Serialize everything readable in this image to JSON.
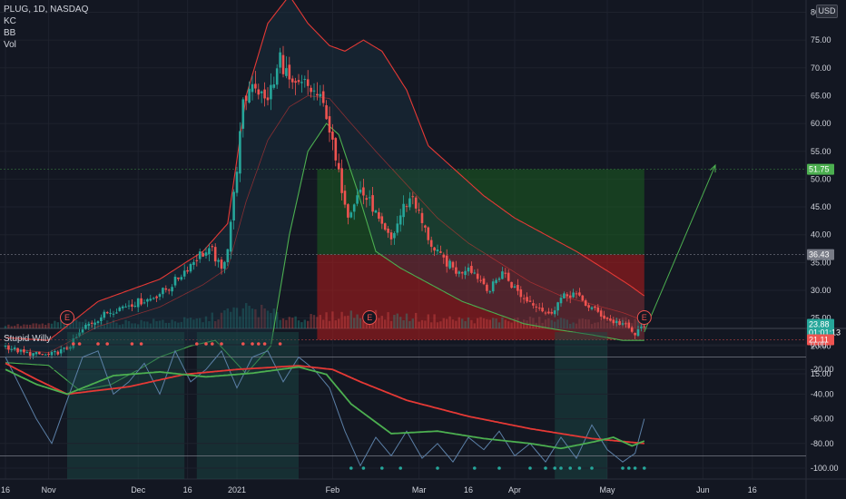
{
  "header": {
    "symbol_line": "PLUG, 1D, NASDAQ",
    "indicators": [
      "KC",
      "BB",
      "Vol"
    ]
  },
  "pane2_title": "Stupid Willy",
  "currency": "USD",
  "colors": {
    "background": "#131722",
    "up": "#26a69a",
    "down": "#ef5350",
    "keltner": "#e53935",
    "bollinger_lower": "#4caf50",
    "willy_fast": "#4caf50",
    "willy_slow": "#e53935",
    "willy_raw": "#5b7fa6",
    "profit_zone": "#1b5e20",
    "loss_zone": "#b71c1c",
    "projection": "#4caf50"
  },
  "chart_data": [
    {
      "type": "candlestick",
      "title": "PLUG, 1D, NASDAQ",
      "y_axis": {
        "range": [
          12,
          82
        ],
        "ticks": [
          "80.00",
          "75.00",
          "70.00",
          "65.00",
          "60.00",
          "55.00",
          "50.00",
          "45.00",
          "40.00",
          "35.00",
          "30.00",
          "25.00",
          "20.00",
          "15.00"
        ],
        "tick_values": [
          80,
          75,
          70,
          65,
          60,
          55,
          50,
          45,
          40,
          35,
          30,
          25,
          20,
          15
        ]
      },
      "x_axis": {
        "ticks": [
          "16",
          "Nov",
          "Dec",
          "16",
          "2021",
          "Feb",
          "Mar",
          "16",
          "Apr",
          "May",
          "Jun",
          "16"
        ],
        "tick_days": [
          0,
          14,
          43,
          59,
          75,
          106,
          134,
          150,
          165,
          195,
          226,
          242
        ]
      },
      "price_labels": [
        {
          "text": "51.75",
          "value": 51.75,
          "kind": "target"
        },
        {
          "text": "36.43",
          "value": 36.43,
          "kind": "entry"
        },
        {
          "text": "23.88",
          "value": 23.88,
          "kind": "last"
        },
        {
          "text": "01:01:13",
          "value": 22.4,
          "kind": "countdown"
        },
        {
          "text": "21.11",
          "value": 21.11,
          "kind": "stop"
        }
      ],
      "earnings_markers": [
        {
          "label": "E",
          "day": 20
        },
        {
          "label": "E",
          "day": 118
        },
        {
          "label": "E",
          "day": 207
        }
      ],
      "position_box": {
        "start_day": 101,
        "end_day": 207,
        "entry": 36.43,
        "target": 51.75,
        "stop": 21.11
      },
      "projection_arrow": {
        "from_day": 207,
        "from_value": 22.5,
        "to_day": 230,
        "to_value": 52.5
      },
      "price_keypoints": [
        [
          0,
          20.0
        ],
        [
          6,
          18.7
        ],
        [
          14,
          18.3
        ],
        [
          20,
          19.5
        ],
        [
          26,
          23.5
        ],
        [
          33,
          26.0
        ],
        [
          40,
          27.5
        ],
        [
          47,
          28.5
        ],
        [
          53,
          30.5
        ],
        [
          58,
          33.5
        ],
        [
          63,
          36.5
        ],
        [
          67,
          37.0
        ],
        [
          70,
          33.5
        ],
        [
          72,
          38.0
        ],
        [
          74,
          47.0
        ],
        [
          77,
          63.0
        ],
        [
          80,
          68.0
        ],
        [
          84,
          64.0
        ],
        [
          87,
          67.0
        ],
        [
          89,
          72.0
        ],
        [
          93,
          66.0
        ],
        [
          97,
          67.0
        ],
        [
          101,
          65.0
        ],
        [
          104,
          62.0
        ],
        [
          107,
          53.0
        ],
        [
          111,
          44.0
        ],
        [
          115,
          48.0
        ],
        [
          119,
          45.0
        ],
        [
          122,
          41.0
        ],
        [
          125,
          39.0
        ],
        [
          129,
          45.0
        ],
        [
          132,
          47.0
        ],
        [
          135,
          42.0
        ],
        [
          139,
          37.0
        ],
        [
          143,
          35.0
        ],
        [
          147,
          33.0
        ],
        [
          150,
          34.5
        ],
        [
          153,
          32.5
        ],
        [
          157,
          30.0
        ],
        [
          161,
          33.5
        ],
        [
          164,
          31.0
        ],
        [
          168,
          28.5
        ],
        [
          172,
          27.5
        ],
        [
          176,
          25.5
        ],
        [
          180,
          28.5
        ],
        [
          184,
          29.5
        ],
        [
          188,
          27.5
        ],
        [
          192,
          26.0
        ],
        [
          196,
          24.5
        ],
        [
          200,
          24.0
        ],
        [
          204,
          22.0
        ],
        [
          207,
          23.88
        ]
      ],
      "keltner_upper_keypoints": [
        [
          0,
          21.5
        ],
        [
          14,
          21.0
        ],
        [
          30,
          28.0
        ],
        [
          50,
          32.0
        ],
        [
          64,
          37.0
        ],
        [
          72,
          42.0
        ],
        [
          78,
          65.0
        ],
        [
          85,
          78.0
        ],
        [
          92,
          83.0
        ],
        [
          98,
          78.0
        ],
        [
          105,
          74.0
        ],
        [
          110,
          73.0
        ],
        [
          116,
          75.0
        ],
        [
          122,
          73.0
        ],
        [
          130,
          66.0
        ],
        [
          137,
          56.0
        ],
        [
          145,
          52.0
        ],
        [
          155,
          47.0
        ],
        [
          165,
          43.0
        ],
        [
          175,
          40.0
        ],
        [
          185,
          37.0
        ],
        [
          195,
          33.5
        ],
        [
          202,
          31.0
        ],
        [
          207,
          29.0
        ]
      ],
      "keltner_mid_keypoints": [
        [
          0,
          19.5
        ],
        [
          14,
          18.8
        ],
        [
          30,
          23.5
        ],
        [
          50,
          27.0
        ],
        [
          64,
          31.0
        ],
        [
          72,
          34.0
        ],
        [
          78,
          46.0
        ],
        [
          85,
          57.0
        ],
        [
          92,
          63.0
        ],
        [
          98,
          65.0
        ],
        [
          105,
          64.5
        ],
        [
          112,
          60.0
        ],
        [
          120,
          55.0
        ],
        [
          130,
          49.0
        ],
        [
          140,
          43.0
        ],
        [
          150,
          38.5
        ],
        [
          160,
          35.0
        ],
        [
          170,
          31.5
        ],
        [
          180,
          29.0
        ],
        [
          190,
          27.5
        ],
        [
          200,
          26.0
        ],
        [
          207,
          24.5
        ]
      ],
      "bb_lower_keypoints": [
        [
          0,
          17.0
        ],
        [
          14,
          16.5
        ],
        [
          24,
          12.0
        ],
        [
          34,
          13.0
        ],
        [
          44,
          16.0
        ],
        [
          50,
          18.0
        ],
        [
          60,
          20.0
        ],
        [
          68,
          21.0
        ],
        [
          73,
          18.0
        ],
        [
          78,
          15.0
        ],
        [
          86,
          20.0
        ],
        [
          92,
          40.0
        ],
        [
          98,
          55.0
        ],
        [
          104,
          60.0
        ],
        [
          108,
          58.0
        ],
        [
          114,
          48.0
        ],
        [
          120,
          37.0
        ],
        [
          128,
          34.0
        ],
        [
          138,
          31.0
        ],
        [
          148,
          28.0
        ],
        [
          158,
          26.0
        ],
        [
          168,
          24.0
        ],
        [
          178,
          23.0
        ],
        [
          190,
          22.0
        ],
        [
          200,
          21.0
        ],
        [
          207,
          21.0
        ]
      ],
      "volume_keypoints": [
        [
          0,
          2
        ],
        [
          14,
          3
        ],
        [
          20,
          6
        ],
        [
          30,
          4
        ],
        [
          50,
          5
        ],
        [
          64,
          6
        ],
        [
          74,
          12
        ],
        [
          80,
          14
        ],
        [
          90,
          8
        ],
        [
          101,
          7
        ],
        [
          110,
          10
        ],
        [
          120,
          9
        ],
        [
          130,
          8
        ],
        [
          150,
          6
        ],
        [
          170,
          6
        ],
        [
          190,
          5
        ],
        [
          207,
          6
        ]
      ]
    },
    {
      "type": "line",
      "title": "Stupid Willy",
      "y_axis": {
        "range": [
          -105,
          5
        ],
        "ticks": [
          "0.00",
          "-20.00",
          "-40.00",
          "-60.00",
          "-80.00",
          "-100.00"
        ],
        "tick_values": [
          0,
          -20,
          -40,
          -60,
          -80,
          -100
        ]
      },
      "shaded_regions": [
        [
          20,
          58
        ],
        [
          62,
          95
        ],
        [
          178,
          195
        ]
      ],
      "reference_lines": [
        -10,
        -90
      ],
      "series": [
        {
          "role": "slow",
          "keypoints": [
            [
              0,
              -15
            ],
            [
              10,
              -28
            ],
            [
              20,
              -40
            ],
            [
              40,
              -34
            ],
            [
              58,
              -24
            ],
            [
              75,
              -20
            ],
            [
              95,
              -17
            ],
            [
              106,
              -20
            ],
            [
              115,
              -30
            ],
            [
              130,
              -45
            ],
            [
              150,
              -58
            ],
            [
              170,
              -68
            ],
            [
              190,
              -76
            ],
            [
              207,
              -80
            ]
          ]
        },
        {
          "role": "fast",
          "keypoints": [
            [
              0,
              -20
            ],
            [
              10,
              -32
            ],
            [
              20,
              -40
            ],
            [
              35,
              -25
            ],
            [
              50,
              -22
            ],
            [
              65,
              -26
            ],
            [
              80,
              -23
            ],
            [
              95,
              -18
            ],
            [
              104,
              -24
            ],
            [
              112,
              -48
            ],
            [
              125,
              -72
            ],
            [
              140,
              -70
            ],
            [
              155,
              -76
            ],
            [
              170,
              -80
            ],
            [
              180,
              -84
            ],
            [
              190,
              -79
            ],
            [
              197,
              -75
            ],
            [
              203,
              -82
            ],
            [
              207,
              -78
            ]
          ]
        },
        {
          "role": "raw",
          "keypoints": [
            [
              0,
              -10
            ],
            [
              5,
              -35
            ],
            [
              10,
              -60
            ],
            [
              15,
              -80
            ],
            [
              20,
              -45
            ],
            [
              25,
              -10
            ],
            [
              30,
              -5
            ],
            [
              35,
              -40
            ],
            [
              40,
              -30
            ],
            [
              45,
              -15
            ],
            [
              50,
              -40
            ],
            [
              55,
              -5
            ],
            [
              60,
              -30
            ],
            [
              65,
              -20
            ],
            [
              70,
              -5
            ],
            [
              75,
              -35
            ],
            [
              80,
              -10
            ],
            [
              85,
              -5
            ],
            [
              90,
              -30
            ],
            [
              95,
              -10
            ],
            [
              100,
              -20
            ],
            [
              105,
              -35
            ],
            [
              110,
              -70
            ],
            [
              115,
              -98
            ],
            [
              120,
              -75
            ],
            [
              125,
              -90
            ],
            [
              130,
              -70
            ],
            [
              135,
              -92
            ],
            [
              140,
              -80
            ],
            [
              145,
              -95
            ],
            [
              150,
              -75
            ],
            [
              155,
              -85
            ],
            [
              160,
              -70
            ],
            [
              165,
              -90
            ],
            [
              170,
              -80
            ],
            [
              175,
              -95
            ],
            [
              180,
              -75
            ],
            [
              185,
              -92
            ],
            [
              190,
              -65
            ],
            [
              195,
              -85
            ],
            [
              200,
              -95
            ],
            [
              204,
              -88
            ],
            [
              207,
              -60
            ]
          ]
        }
      ],
      "markers_top_days": [
        22,
        24,
        30,
        33,
        41,
        44,
        62,
        65,
        67,
        70,
        77,
        80,
        82,
        84,
        89
      ],
      "markers_bottom_days": [
        112,
        116,
        122,
        128,
        140,
        152,
        160,
        170,
        175,
        178,
        180,
        183,
        186,
        190,
        200,
        202,
        204,
        207
      ]
    }
  ]
}
